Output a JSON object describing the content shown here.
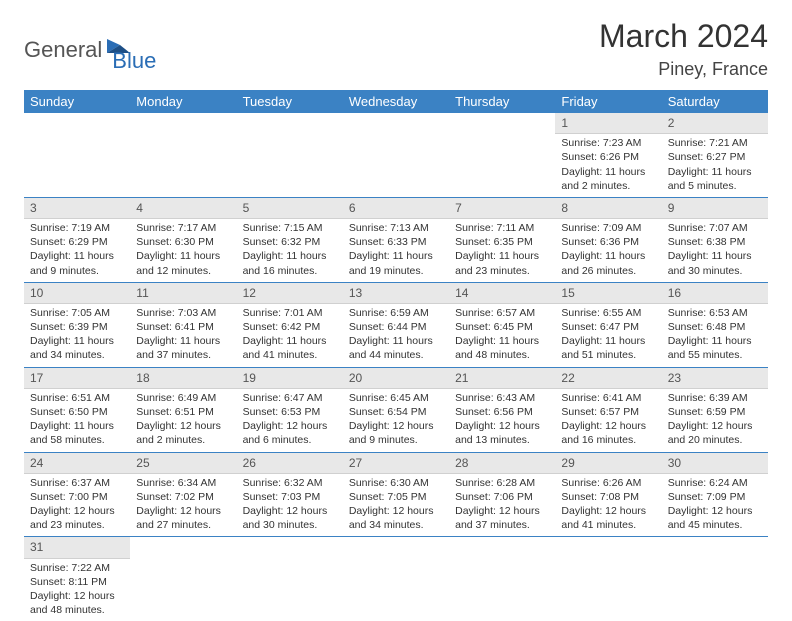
{
  "logo": {
    "word1": "General",
    "word2": "Blue",
    "accent": "#2a6db5"
  },
  "title": "March 2024",
  "location": "Piney, France",
  "header_bg": "#3b82c4",
  "daynum_bg": "#e8e8e8",
  "row_border": "#3b82c4",
  "weekdays": [
    "Sunday",
    "Monday",
    "Tuesday",
    "Wednesday",
    "Thursday",
    "Friday",
    "Saturday"
  ],
  "weeks": [
    [
      null,
      null,
      null,
      null,
      null,
      {
        "n": "1",
        "sunrise": "Sunrise: 7:23 AM",
        "sunset": "Sunset: 6:26 PM",
        "day": "Daylight: 11 hours and 2 minutes."
      },
      {
        "n": "2",
        "sunrise": "Sunrise: 7:21 AM",
        "sunset": "Sunset: 6:27 PM",
        "day": "Daylight: 11 hours and 5 minutes."
      }
    ],
    [
      {
        "n": "3",
        "sunrise": "Sunrise: 7:19 AM",
        "sunset": "Sunset: 6:29 PM",
        "day": "Daylight: 11 hours and 9 minutes."
      },
      {
        "n": "4",
        "sunrise": "Sunrise: 7:17 AM",
        "sunset": "Sunset: 6:30 PM",
        "day": "Daylight: 11 hours and 12 minutes."
      },
      {
        "n": "5",
        "sunrise": "Sunrise: 7:15 AM",
        "sunset": "Sunset: 6:32 PM",
        "day": "Daylight: 11 hours and 16 minutes."
      },
      {
        "n": "6",
        "sunrise": "Sunrise: 7:13 AM",
        "sunset": "Sunset: 6:33 PM",
        "day": "Daylight: 11 hours and 19 minutes."
      },
      {
        "n": "7",
        "sunrise": "Sunrise: 7:11 AM",
        "sunset": "Sunset: 6:35 PM",
        "day": "Daylight: 11 hours and 23 minutes."
      },
      {
        "n": "8",
        "sunrise": "Sunrise: 7:09 AM",
        "sunset": "Sunset: 6:36 PM",
        "day": "Daylight: 11 hours and 26 minutes."
      },
      {
        "n": "9",
        "sunrise": "Sunrise: 7:07 AM",
        "sunset": "Sunset: 6:38 PM",
        "day": "Daylight: 11 hours and 30 minutes."
      }
    ],
    [
      {
        "n": "10",
        "sunrise": "Sunrise: 7:05 AM",
        "sunset": "Sunset: 6:39 PM",
        "day": "Daylight: 11 hours and 34 minutes."
      },
      {
        "n": "11",
        "sunrise": "Sunrise: 7:03 AM",
        "sunset": "Sunset: 6:41 PM",
        "day": "Daylight: 11 hours and 37 minutes."
      },
      {
        "n": "12",
        "sunrise": "Sunrise: 7:01 AM",
        "sunset": "Sunset: 6:42 PM",
        "day": "Daylight: 11 hours and 41 minutes."
      },
      {
        "n": "13",
        "sunrise": "Sunrise: 6:59 AM",
        "sunset": "Sunset: 6:44 PM",
        "day": "Daylight: 11 hours and 44 minutes."
      },
      {
        "n": "14",
        "sunrise": "Sunrise: 6:57 AM",
        "sunset": "Sunset: 6:45 PM",
        "day": "Daylight: 11 hours and 48 minutes."
      },
      {
        "n": "15",
        "sunrise": "Sunrise: 6:55 AM",
        "sunset": "Sunset: 6:47 PM",
        "day": "Daylight: 11 hours and 51 minutes."
      },
      {
        "n": "16",
        "sunrise": "Sunrise: 6:53 AM",
        "sunset": "Sunset: 6:48 PM",
        "day": "Daylight: 11 hours and 55 minutes."
      }
    ],
    [
      {
        "n": "17",
        "sunrise": "Sunrise: 6:51 AM",
        "sunset": "Sunset: 6:50 PM",
        "day": "Daylight: 11 hours and 58 minutes."
      },
      {
        "n": "18",
        "sunrise": "Sunrise: 6:49 AM",
        "sunset": "Sunset: 6:51 PM",
        "day": "Daylight: 12 hours and 2 minutes."
      },
      {
        "n": "19",
        "sunrise": "Sunrise: 6:47 AM",
        "sunset": "Sunset: 6:53 PM",
        "day": "Daylight: 12 hours and 6 minutes."
      },
      {
        "n": "20",
        "sunrise": "Sunrise: 6:45 AM",
        "sunset": "Sunset: 6:54 PM",
        "day": "Daylight: 12 hours and 9 minutes."
      },
      {
        "n": "21",
        "sunrise": "Sunrise: 6:43 AM",
        "sunset": "Sunset: 6:56 PM",
        "day": "Daylight: 12 hours and 13 minutes."
      },
      {
        "n": "22",
        "sunrise": "Sunrise: 6:41 AM",
        "sunset": "Sunset: 6:57 PM",
        "day": "Daylight: 12 hours and 16 minutes."
      },
      {
        "n": "23",
        "sunrise": "Sunrise: 6:39 AM",
        "sunset": "Sunset: 6:59 PM",
        "day": "Daylight: 12 hours and 20 minutes."
      }
    ],
    [
      {
        "n": "24",
        "sunrise": "Sunrise: 6:37 AM",
        "sunset": "Sunset: 7:00 PM",
        "day": "Daylight: 12 hours and 23 minutes."
      },
      {
        "n": "25",
        "sunrise": "Sunrise: 6:34 AM",
        "sunset": "Sunset: 7:02 PM",
        "day": "Daylight: 12 hours and 27 minutes."
      },
      {
        "n": "26",
        "sunrise": "Sunrise: 6:32 AM",
        "sunset": "Sunset: 7:03 PM",
        "day": "Daylight: 12 hours and 30 minutes."
      },
      {
        "n": "27",
        "sunrise": "Sunrise: 6:30 AM",
        "sunset": "Sunset: 7:05 PM",
        "day": "Daylight: 12 hours and 34 minutes."
      },
      {
        "n": "28",
        "sunrise": "Sunrise: 6:28 AM",
        "sunset": "Sunset: 7:06 PM",
        "day": "Daylight: 12 hours and 37 minutes."
      },
      {
        "n": "29",
        "sunrise": "Sunrise: 6:26 AM",
        "sunset": "Sunset: 7:08 PM",
        "day": "Daylight: 12 hours and 41 minutes."
      },
      {
        "n": "30",
        "sunrise": "Sunrise: 6:24 AM",
        "sunset": "Sunset: 7:09 PM",
        "day": "Daylight: 12 hours and 45 minutes."
      }
    ],
    [
      {
        "n": "31",
        "sunrise": "Sunrise: 7:22 AM",
        "sunset": "Sunset: 8:11 PM",
        "day": "Daylight: 12 hours and 48 minutes."
      },
      null,
      null,
      null,
      null,
      null,
      null
    ]
  ]
}
